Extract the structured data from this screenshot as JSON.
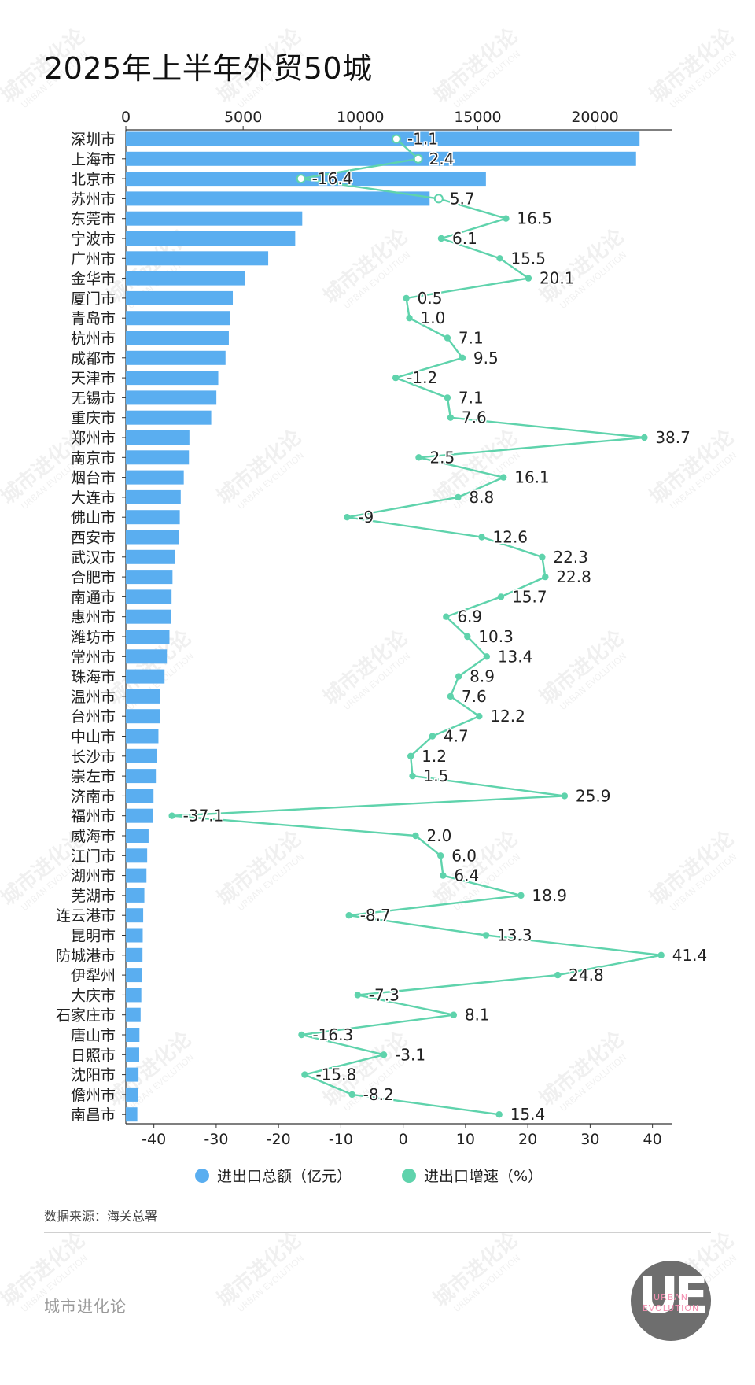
{
  "title": "2025年上半年外贸50城",
  "source": "数据来源：海关总署",
  "brand": "城市进化论",
  "logo": {
    "mark": "UE",
    "line1": "URBAN",
    "line2": "EVOLUTION"
  },
  "watermark": {
    "text": "城市进化论",
    "sub": "URBAN EVOLUTION"
  },
  "chart_data": {
    "type": "bar",
    "orientation": "horizontal",
    "categories": [
      "深圳市",
      "上海市",
      "北京市",
      "苏州市",
      "东莞市",
      "宁波市",
      "广州市",
      "金华市",
      "厦门市",
      "青岛市",
      "杭州市",
      "成都市",
      "天津市",
      "无锡市",
      "重庆市",
      "郑州市",
      "南京市",
      "烟台市",
      "大连市",
      "佛山市",
      "西安市",
      "武汉市",
      "合肥市",
      "南通市",
      "惠州市",
      "潍坊市",
      "常州市",
      "珠海市",
      "温州市",
      "台州市",
      "中山市",
      "长沙市",
      "崇左市",
      "济南市",
      "福州市",
      "威海市",
      "江门市",
      "湖州市",
      "芜湖市",
      "连云港市",
      "昆明市",
      "防城港市",
      "伊犁州",
      "大庆市",
      "石家庄市",
      "唐山市",
      "日照市",
      "沈阳市",
      "儋州市",
      "南昌市"
    ],
    "series": [
      {
        "name": "进出口总额（亿元）",
        "type": "bar",
        "axis": "top",
        "color": "#5aaef0",
        "values": [
          21900,
          21750,
          15350,
          12950,
          7520,
          7220,
          6070,
          5080,
          4560,
          4430,
          4390,
          4250,
          3940,
          3860,
          3640,
          2710,
          2690,
          2470,
          2340,
          2300,
          2280,
          2100,
          1990,
          1950,
          1940,
          1860,
          1750,
          1650,
          1470,
          1450,
          1390,
          1330,
          1280,
          1180,
          1170,
          970,
          910,
          880,
          790,
          740,
          720,
          710,
          680,
          660,
          630,
          580,
          570,
          540,
          520,
          490
        ]
      },
      {
        "name": "进出口增速（%）",
        "type": "line",
        "axis": "bottom",
        "color": "#5fd3ac",
        "values": [
          -1.1,
          2.4,
          -16.4,
          5.7,
          16.5,
          6.1,
          15.5,
          20.1,
          0.5,
          1.0,
          7.1,
          9.5,
          -1.2,
          7.1,
          7.6,
          38.7,
          2.5,
          16.1,
          8.8,
          -9,
          12.6,
          22.3,
          22.8,
          15.7,
          6.9,
          10.3,
          13.4,
          8.9,
          7.6,
          12.2,
          4.7,
          1.2,
          1.5,
          25.9,
          -37.1,
          2.0,
          6.0,
          6.4,
          18.9,
          -8.7,
          13.3,
          41.4,
          24.8,
          -7.3,
          8.1,
          -16.3,
          -3.1,
          -15.8,
          -8.2,
          15.4
        ],
        "labels": [
          "-1.1",
          "2.4",
          "-16.4",
          "5.7",
          "16.5",
          "6.1",
          "15.5",
          "20.1",
          "0.5",
          "1.0",
          "7.1",
          "9.5",
          "-1.2",
          "7.1",
          "7.6",
          "38.7",
          "2.5",
          "16.1",
          "8.8",
          "-9",
          "12.6",
          "22.3",
          "22.8",
          "15.7",
          "6.9",
          "10.3",
          "13.4",
          "8.9",
          "7.6",
          "12.2",
          "4.7",
          "1.2",
          "1.5",
          "25.9",
          "-37.1",
          "2.0",
          "6.0",
          "6.4",
          "18.9",
          "-8.7",
          "13.3",
          "41.4",
          "24.8",
          "-7.3",
          "8.1",
          "-16.3",
          "-3.1",
          "-15.8",
          "-8.2",
          "15.4"
        ]
      }
    ],
    "top_axis": {
      "ticks": [
        0,
        5000,
        10000,
        15000,
        20000
      ],
      "tick_labels": [
        "0",
        "5000",
        "10000",
        "15000",
        "20000"
      ],
      "range": [
        0,
        23300
      ]
    },
    "bottom_axis": {
      "ticks": [
        -40,
        -30,
        -20,
        -10,
        0,
        10,
        20,
        30,
        40
      ],
      "tick_labels": [
        "-40",
        "-30",
        "-20",
        "-10",
        "0",
        "10",
        "20",
        "30",
        "40"
      ],
      "range": [
        -44.5,
        43.2
      ]
    },
    "legend_position": "bottom",
    "grid": false
  }
}
